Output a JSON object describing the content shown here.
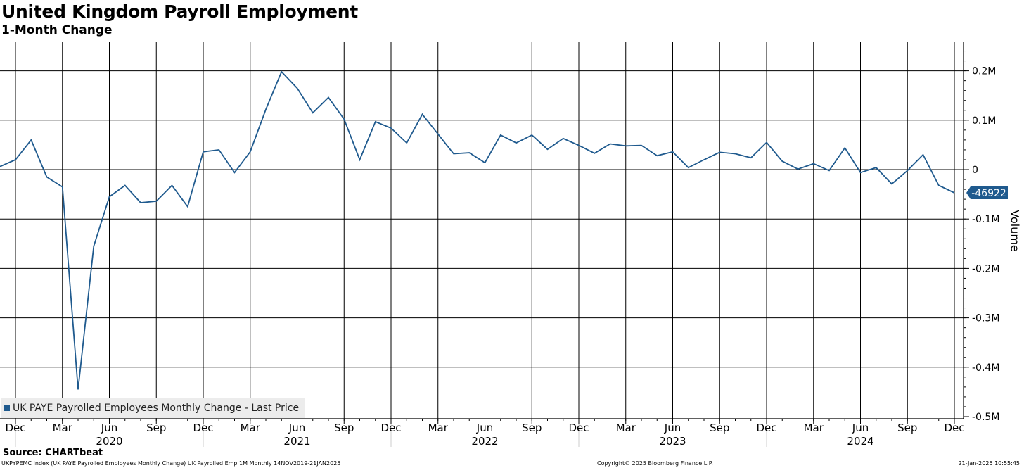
{
  "title": "United Kingdom Payroll Employment",
  "subtitle": "1-Month Change",
  "source": "Source: CHARTbeat",
  "footer": {
    "left": "UKPYPEMC Index (UK PAYE Payrolled Employees Monthly Change) UK Payrolled Emp 1M  Monthly 14NOV2019-21JAN2025",
    "center": "Copyright© 2025 Bloomberg Finance L.P.",
    "right": "21-Jan-2025 10:55:45"
  },
  "colors": {
    "line": "#1f5a8e",
    "grid": "#000000",
    "badge": "#1f5a8e"
  },
  "chart_data": {
    "type": "line",
    "title": "United Kingdom Payroll Employment",
    "subtitle": "1-Month Change",
    "ylabel": "Volume",
    "ylim": [
      -0.5,
      0.25
    ],
    "grid": true,
    "legend_position": "bottom-left",
    "y_ticks": [
      {
        "value": 0.2,
        "label": "0.2M"
      },
      {
        "value": 0.1,
        "label": "0.1M"
      },
      {
        "value": 0.0,
        "label": "0"
      },
      {
        "value": -0.1,
        "label": "-0.1M"
      },
      {
        "value": -0.2,
        "label": "-0.2M"
      },
      {
        "value": -0.3,
        "label": "-0.3M"
      },
      {
        "value": -0.4,
        "label": "-0.4M"
      },
      {
        "value": -0.5,
        "label": "-0.5M"
      }
    ],
    "x_month_ticks": [
      {
        "date": "2019-12",
        "label": "Dec"
      },
      {
        "date": "2020-03",
        "label": "Mar"
      },
      {
        "date": "2020-06",
        "label": "Jun"
      },
      {
        "date": "2020-09",
        "label": "Sep"
      },
      {
        "date": "2020-12",
        "label": "Dec"
      },
      {
        "date": "2021-03",
        "label": "Mar"
      },
      {
        "date": "2021-06",
        "label": "Jun"
      },
      {
        "date": "2021-09",
        "label": "Sep"
      },
      {
        "date": "2021-12",
        "label": "Dec"
      },
      {
        "date": "2022-03",
        "label": "Mar"
      },
      {
        "date": "2022-06",
        "label": "Jun"
      },
      {
        "date": "2022-09",
        "label": "Sep"
      },
      {
        "date": "2022-12",
        "label": "Dec"
      },
      {
        "date": "2023-03",
        "label": "Mar"
      },
      {
        "date": "2023-06",
        "label": "Jun"
      },
      {
        "date": "2023-09",
        "label": "Sep"
      },
      {
        "date": "2023-12",
        "label": "Dec"
      },
      {
        "date": "2024-03",
        "label": "Mar"
      },
      {
        "date": "2024-06",
        "label": "Jun"
      },
      {
        "date": "2024-09",
        "label": "Sep"
      },
      {
        "date": "2024-12",
        "label": "Dec"
      }
    ],
    "x_year_labels": [
      {
        "date": "2020-06",
        "label": "2020"
      },
      {
        "date": "2021-06",
        "label": "2021"
      },
      {
        "date": "2022-06",
        "label": "2022"
      },
      {
        "date": "2023-06",
        "label": "2023"
      },
      {
        "date": "2024-06",
        "label": "2024"
      }
    ],
    "last_price": {
      "value": -0.046922,
      "label": "-46922"
    },
    "series": [
      {
        "name": "UK PAYE Payrolled Employees Monthly Change - Last Price",
        "x": [
          "2019-11",
          "2019-12",
          "2020-01",
          "2020-02",
          "2020-03",
          "2020-04",
          "2020-05",
          "2020-06",
          "2020-07",
          "2020-08",
          "2020-09",
          "2020-10",
          "2020-11",
          "2020-12",
          "2021-01",
          "2021-02",
          "2021-03",
          "2021-04",
          "2021-05",
          "2021-06",
          "2021-07",
          "2021-08",
          "2021-09",
          "2021-10",
          "2021-11",
          "2021-12",
          "2022-01",
          "2022-02",
          "2022-03",
          "2022-04",
          "2022-05",
          "2022-06",
          "2022-07",
          "2022-08",
          "2022-09",
          "2022-10",
          "2022-11",
          "2022-12",
          "2023-01",
          "2023-02",
          "2023-03",
          "2023-04",
          "2023-05",
          "2023-06",
          "2023-07",
          "2023-08",
          "2023-09",
          "2023-10",
          "2023-11",
          "2023-12",
          "2024-01",
          "2024-02",
          "2024-03",
          "2024-04",
          "2024-05",
          "2024-06",
          "2024-07",
          "2024-08",
          "2024-09",
          "2024-10",
          "2024-11",
          "2024-12"
        ],
        "values": [
          0.006,
          0.02,
          0.06,
          -0.015,
          -0.035,
          -0.445,
          -0.155,
          -0.055,
          -0.032,
          -0.067,
          -0.064,
          -0.032,
          -0.075,
          0.036,
          0.04,
          -0.006,
          0.036,
          0.122,
          0.198,
          0.165,
          0.115,
          0.146,
          0.102,
          0.02,
          0.097,
          0.084,
          0.054,
          0.112,
          0.072,
          0.032,
          0.034,
          0.014,
          0.07,
          0.054,
          0.07,
          0.041,
          0.063,
          0.049,
          0.033,
          0.052,
          0.048,
          0.049,
          0.028,
          0.036,
          0.004,
          0.02,
          0.035,
          0.032,
          0.024,
          0.055,
          0.017,
          0.001,
          0.012,
          -0.002,
          0.044,
          -0.006,
          0.004,
          -0.029,
          -0.002,
          0.03,
          -0.032,
          -0.047
        ]
      }
    ]
  }
}
